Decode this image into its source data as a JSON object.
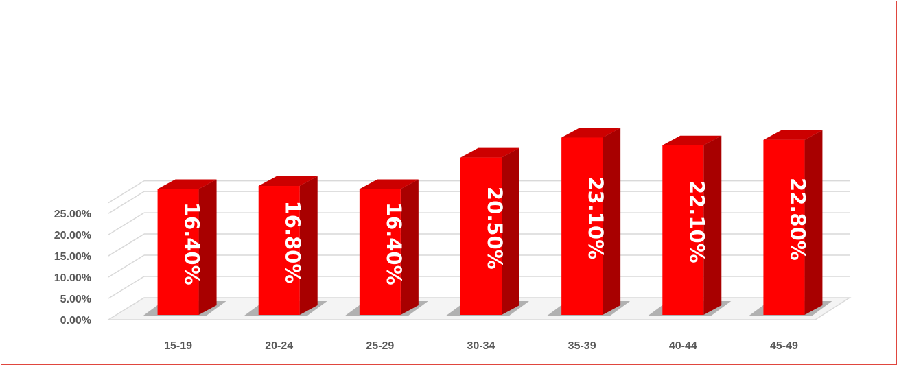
{
  "chart_data": {
    "type": "bar",
    "categories": [
      "15-19",
      "20-24",
      "25-29",
      "30-34",
      "35-39",
      "40-44",
      "45-49"
    ],
    "values": [
      16.4,
      16.8,
      16.4,
      20.5,
      23.1,
      22.1,
      22.8
    ],
    "data_labels": [
      "16.40%",
      "16.80%",
      "16.40%",
      "20.50%",
      "23.10%",
      "22.10%",
      "22.80%"
    ],
    "y_tick_labels": [
      "0.00%",
      "5.00%",
      "10.00%",
      "15.00%",
      "20.00%",
      "25.00%"
    ],
    "y_ticks": [
      0,
      5,
      10,
      15,
      20,
      25
    ],
    "ylim": [
      0,
      27.5
    ],
    "title": "",
    "xlabel": "",
    "ylabel": "",
    "grid": true,
    "legend": false,
    "style": "3d-column",
    "colors": {
      "bar_front": "#ff0000",
      "bar_side": "#a80000",
      "bar_top": "#cc0000",
      "grid": "#d9d9d9",
      "axis_text": "#595959",
      "border": "#e0463e"
    }
  }
}
